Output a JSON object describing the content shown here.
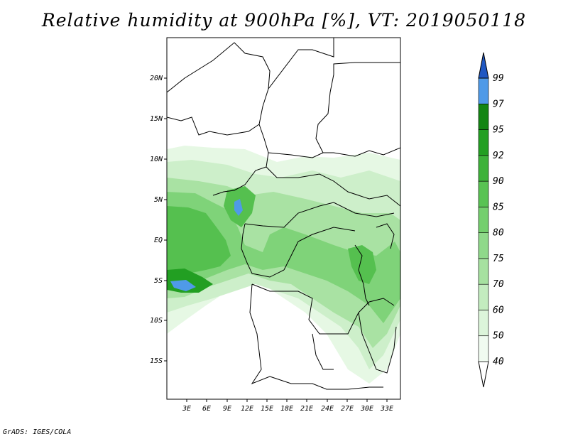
{
  "title": "Relative humidity at 900hPa [%], VT: 2019050118",
  "credit": "GrADS: IGES/COLA",
  "map": {
    "lat_labels": [
      "20N",
      "15N",
      "10N",
      "5N",
      "EQ",
      "5S",
      "10S",
      "15S"
    ],
    "lon_labels": [
      "3E",
      "6E",
      "9E",
      "12E",
      "15E",
      "18E",
      "21E",
      "24E",
      "27E",
      "30E",
      "33E"
    ],
    "extent": {
      "lon_min": 0,
      "lon_max": 35,
      "lat_min": -20,
      "lat_max": 25
    }
  },
  "colorbar": {
    "levels": [
      "40",
      "50",
      "60",
      "70",
      "75",
      "80",
      "85",
      "90",
      "92",
      "95",
      "97",
      "99"
    ],
    "colors": [
      "#f0fbf0",
      "#dcf5da",
      "#c3ecbf",
      "#a6e1a0",
      "#8fd98a",
      "#74cf6e",
      "#58c353",
      "#3db23a",
      "#229f22",
      "#138513",
      "#4f9ae8",
      "#2f6fd6",
      "#1f57c2"
    ],
    "lower_arrow_color": "#ffffff",
    "upper_arrow_color": "#1f57c2"
  }
}
